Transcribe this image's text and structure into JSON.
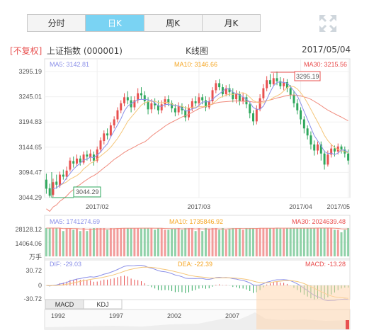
{
  "tabs": [
    {
      "label": "分时",
      "active": false
    },
    {
      "label": "日K",
      "active": true
    },
    {
      "label": "周K",
      "active": false
    },
    {
      "label": "月K",
      "active": false
    }
  ],
  "header": {
    "adjust": "[不复权]",
    "stock": "上证指数 (000001)",
    "title": "K线图",
    "date": "2017/05/04"
  },
  "colors": {
    "up": "#e8504f",
    "down": "#2ea75c",
    "ma5": "#8a8fe8",
    "ma10": "#f5a623",
    "ma30": "#e94b4b",
    "accent": "#7ad3f3"
  },
  "chart_data": {
    "type": "candlestick",
    "title": "K线图",
    "price": {
      "ylim": [
        3044.29,
        3295.19
      ],
      "ticks": [
        "3295.19",
        "3245.01",
        "3194.83",
        "3144.65",
        "3094.47",
        "3044.29"
      ],
      "max_label": "3295.19",
      "min_label": "3044.29",
      "legend": {
        "ma5": "MA5: 3142.81",
        "ma10": "MA10: 3146.66",
        "ma30": "MA30: 3215.56"
      },
      "x_labels": [
        "2017/02",
        "2017/03",
        "2017/04",
        "2017/05"
      ],
      "candles": [
        [
          3080,
          3062,
          3092,
          3052
        ],
        [
          3063,
          3048,
          3072,
          3044.29
        ],
        [
          3050,
          3075,
          3082,
          3046
        ],
        [
          3076,
          3070,
          3090,
          3062
        ],
        [
          3068,
          3090,
          3096,
          3064
        ],
        [
          3090,
          3086,
          3100,
          3080
        ],
        [
          3086,
          3098,
          3106,
          3080
        ],
        [
          3100,
          3118,
          3124,
          3096
        ],
        [
          3117,
          3112,
          3126,
          3104
        ],
        [
          3112,
          3122,
          3130,
          3106
        ],
        [
          3122,
          3114,
          3128,
          3108
        ],
        [
          3114,
          3130,
          3136,
          3110
        ],
        [
          3130,
          3126,
          3138,
          3118
        ],
        [
          3124,
          3132,
          3140,
          3116
        ],
        [
          3130,
          3118,
          3136,
          3108
        ],
        [
          3118,
          3140,
          3146,
          3114
        ],
        [
          3140,
          3158,
          3164,
          3134
        ],
        [
          3157,
          3172,
          3178,
          3150
        ],
        [
          3172,
          3168,
          3182,
          3160
        ],
        [
          3168,
          3188,
          3194,
          3164
        ],
        [
          3188,
          3200,
          3206,
          3182
        ],
        [
          3200,
          3218,
          3224,
          3194
        ],
        [
          3218,
          3232,
          3238,
          3212
        ],
        [
          3232,
          3244,
          3252,
          3226
        ],
        [
          3244,
          3238,
          3256,
          3230
        ],
        [
          3238,
          3224,
          3246,
          3214
        ],
        [
          3224,
          3238,
          3246,
          3218
        ],
        [
          3238,
          3252,
          3262,
          3232
        ],
        [
          3252,
          3248,
          3264,
          3240
        ],
        [
          3248,
          3236,
          3256,
          3228
        ],
        [
          3236,
          3220,
          3244,
          3210
        ],
        [
          3220,
          3232,
          3240,
          3212
        ],
        [
          3232,
          3228,
          3242,
          3220
        ],
        [
          3228,
          3218,
          3238,
          3210
        ],
        [
          3218,
          3230,
          3238,
          3212
        ],
        [
          3230,
          3240,
          3246,
          3224
        ],
        [
          3240,
          3232,
          3248,
          3226
        ],
        [
          3232,
          3222,
          3238,
          3214
        ],
        [
          3222,
          3214,
          3230,
          3206
        ],
        [
          3214,
          3226,
          3234,
          3208
        ],
        [
          3226,
          3218,
          3232,
          3210
        ],
        [
          3218,
          3204,
          3226,
          3196
        ],
        [
          3204,
          3222,
          3230,
          3198
        ],
        [
          3222,
          3236,
          3242,
          3216
        ],
        [
          3236,
          3232,
          3246,
          3226
        ],
        [
          3232,
          3244,
          3252,
          3226
        ],
        [
          3244,
          3238,
          3250,
          3230
        ],
        [
          3238,
          3224,
          3246,
          3216
        ],
        [
          3224,
          3236,
          3244,
          3220
        ],
        [
          3236,
          3258,
          3264,
          3230
        ],
        [
          3258,
          3272,
          3278,
          3252
        ],
        [
          3272,
          3264,
          3280,
          3258
        ],
        [
          3264,
          3250,
          3270,
          3244
        ],
        [
          3250,
          3262,
          3268,
          3246
        ],
        [
          3262,
          3254,
          3270,
          3246
        ],
        [
          3254,
          3240,
          3262,
          3234
        ],
        [
          3240,
          3250,
          3258,
          3232
        ],
        [
          3250,
          3236,
          3256,
          3228
        ],
        [
          3236,
          3244,
          3252,
          3230
        ],
        [
          3244,
          3230,
          3250,
          3222
        ],
        [
          3230,
          3212,
          3236,
          3202
        ],
        [
          3212,
          3196,
          3218,
          3188
        ],
        [
          3196,
          3220,
          3228,
          3190
        ],
        [
          3220,
          3242,
          3250,
          3216
        ],
        [
          3242,
          3262,
          3270,
          3238
        ],
        [
          3262,
          3278,
          3286,
          3256
        ],
        [
          3278,
          3270,
          3290,
          3264
        ],
        [
          3270,
          3282,
          3292,
          3266
        ],
        [
          3282,
          3276,
          3295.19,
          3268
        ],
        [
          3276,
          3266,
          3284,
          3260
        ],
        [
          3266,
          3274,
          3282,
          3258
        ],
        [
          3274,
          3262,
          3280,
          3254
        ],
        [
          3262,
          3248,
          3268,
          3240
        ],
        [
          3248,
          3232,
          3256,
          3224
        ],
        [
          3232,
          3218,
          3240,
          3210
        ],
        [
          3218,
          3200,
          3224,
          3190
        ],
        [
          3200,
          3182,
          3206,
          3172
        ],
        [
          3182,
          3168,
          3188,
          3160
        ],
        [
          3168,
          3150,
          3176,
          3140
        ],
        [
          3150,
          3138,
          3158,
          3128
        ],
        [
          3138,
          3150,
          3156,
          3130
        ],
        [
          3150,
          3132,
          3156,
          3118
        ],
        [
          3132,
          3110,
          3138,
          3100
        ],
        [
          3110,
          3130,
          3138,
          3106
        ],
        [
          3130,
          3142,
          3150,
          3124
        ],
        [
          3142,
          3136,
          3148,
          3126
        ],
        [
          3136,
          3146,
          3152,
          3130
        ],
        [
          3146,
          3140,
          3150,
          3132
        ],
        [
          3140,
          3132,
          3146,
          3124
        ],
        [
          3132,
          3118,
          3140,
          3110
        ]
      ]
    },
    "volume": {
      "unit": "万手",
      "ticks": [
        "28128.12",
        "14064.06"
      ],
      "legend": {
        "ma5": "MA5: 1741274.69",
        "ma10": "MA10: 1735846.92",
        "ma30": "MA30: 2024639.48"
      }
    },
    "macd": {
      "ticks": [
        "30.72",
        "0",
        "-30.72"
      ],
      "legend": {
        "dif": "DIF: -29.03",
        "dea": "DEA: -22.39",
        "macd": "MACD: -13.28"
      },
      "tabs": [
        "MACD",
        "KDJ"
      ]
    },
    "navigator": {
      "labels": [
        "1992",
        "1997",
        "2002",
        "2007"
      ]
    }
  }
}
